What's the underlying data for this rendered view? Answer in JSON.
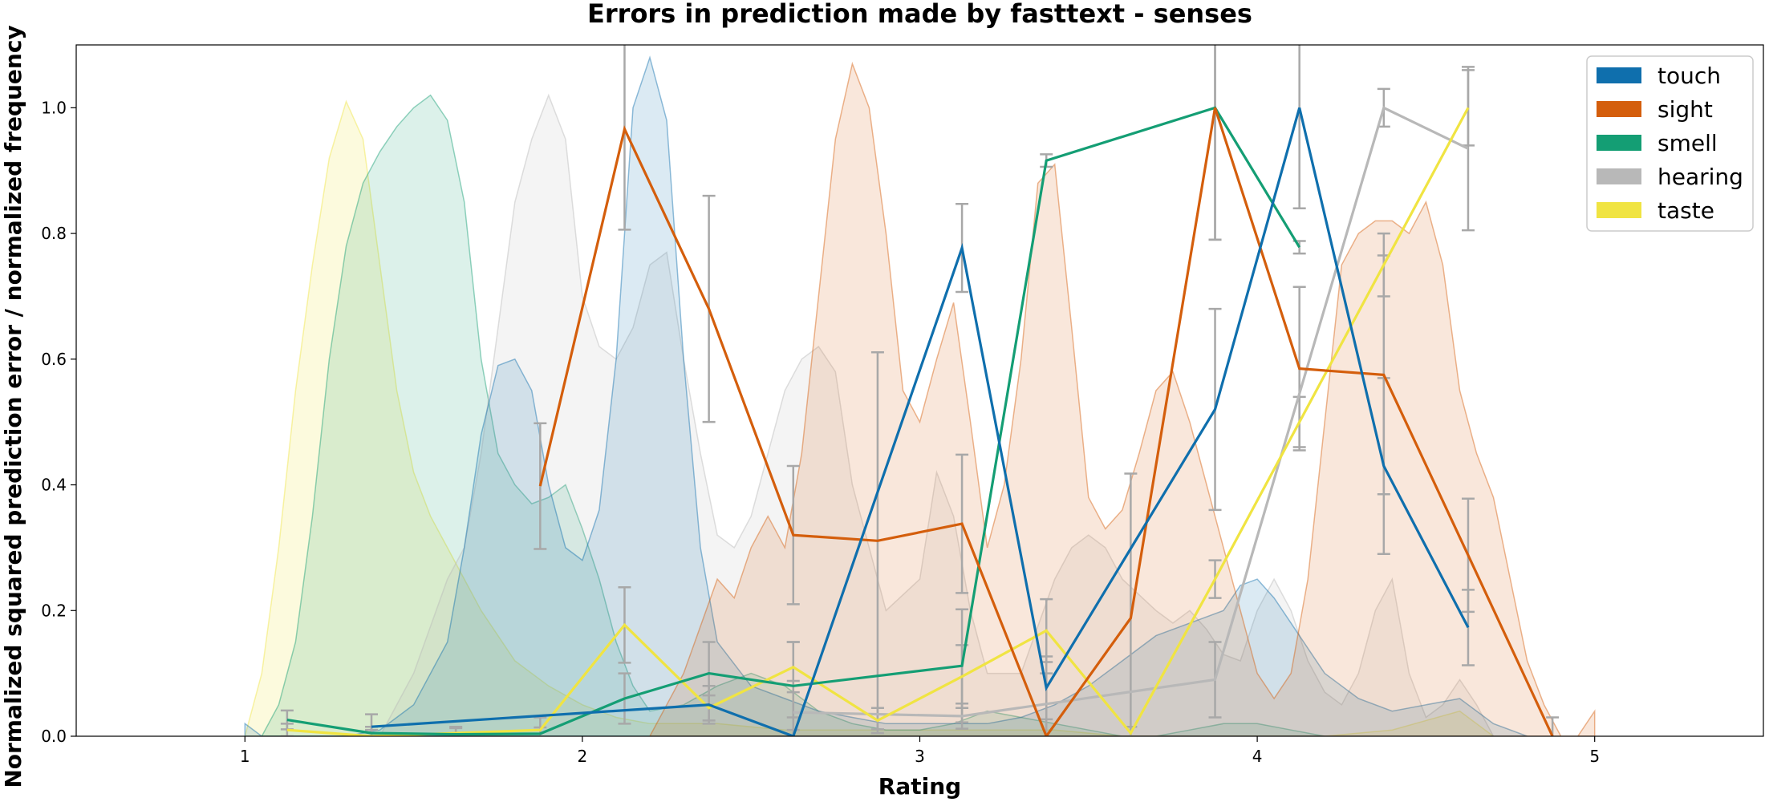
{
  "chart_data": {
    "type": "line",
    "title": "Errors in prediction made by fasttext - senses",
    "xlabel": "Rating",
    "ylabel": "Normalized squared prediction error / normalized frequency",
    "xlim": [
      0.5,
      5.5
    ],
    "ylim": [
      0,
      1.1
    ],
    "x_ticks": [
      1,
      2,
      3,
      4,
      5
    ],
    "y_ticks": [
      0.0,
      0.2,
      0.4,
      0.6,
      0.8,
      1.0
    ],
    "x_tick_labels": [
      "1",
      "2",
      "3",
      "4",
      "5"
    ],
    "y_tick_labels": [
      "0.0",
      "0.2",
      "0.4",
      "0.6",
      "0.8",
      "1.0"
    ],
    "grid": false,
    "legend_position": "top-right",
    "colors": {
      "touch": "#0f6fad",
      "sight": "#d45e0c",
      "smell": "#149e74",
      "hearing": "#b8b8b8",
      "taste": "#f0e442",
      "errorbar": "#a8a8a8"
    },
    "series": [
      {
        "name": "touch",
        "x": [
          1.375,
          2.375,
          2.625,
          3.125,
          3.375,
          3.875,
          4.125,
          4.375,
          4.625
        ],
        "y": [
          0.015,
          0.05,
          0.0,
          0.777,
          0.077,
          0.52,
          1.0,
          0.43,
          0.173
        ],
        "err": [
          0.02,
          0.03,
          0.03,
          0.07,
          0.05,
          0.16,
          0.16,
          0.14,
          0.06
        ],
        "density": {
          "x": [
            1.0,
            1.05,
            1.1,
            1.2,
            1.3,
            1.4,
            1.5,
            1.6,
            1.65,
            1.7,
            1.75,
            1.8,
            1.85,
            1.9,
            1.95,
            2.0,
            2.05,
            2.1,
            2.15,
            2.2,
            2.25,
            2.3,
            2.35,
            2.4,
            2.5,
            2.6,
            2.7,
            2.8,
            2.9,
            3.0,
            3.1,
            3.2,
            3.3,
            3.4,
            3.5,
            3.6,
            3.7,
            3.8,
            3.9,
            3.95,
            4.0,
            4.05,
            4.1,
            4.15,
            4.2,
            4.3,
            4.4,
            4.5,
            4.6,
            4.7,
            4.8
          ],
          "y": [
            0.02,
            0.0,
            0.0,
            0.0,
            0.0,
            0.01,
            0.05,
            0.15,
            0.3,
            0.48,
            0.59,
            0.6,
            0.55,
            0.4,
            0.3,
            0.28,
            0.36,
            0.6,
            1.0,
            1.08,
            0.98,
            0.6,
            0.3,
            0.15,
            0.08,
            0.06,
            0.04,
            0.03,
            0.02,
            0.02,
            0.02,
            0.02,
            0.03,
            0.05,
            0.08,
            0.12,
            0.16,
            0.18,
            0.2,
            0.24,
            0.25,
            0.22,
            0.18,
            0.14,
            0.1,
            0.06,
            0.04,
            0.05,
            0.06,
            0.02,
            0.0
          ]
        }
      },
      {
        "name": "sight",
        "x": [
          1.875,
          2.125,
          2.375,
          2.625,
          2.875,
          3.125,
          3.375,
          3.625,
          3.875,
          4.125,
          4.375,
          4.625,
          4.875
        ],
        "y": [
          0.398,
          0.966,
          0.68,
          0.32,
          0.311,
          0.338,
          0.0,
          0.188,
          1.0,
          0.585,
          0.575,
          0.288,
          0.0
        ],
        "err": [
          0.1,
          0.16,
          0.18,
          0.11,
          0.3,
          0.11,
          0.1,
          0.23,
          0.21,
          0.13,
          0.19,
          0.09,
          0.03
        ],
        "density": {
          "x": [
            2.2,
            2.3,
            2.4,
            2.45,
            2.5,
            2.55,
            2.6,
            2.65,
            2.7,
            2.75,
            2.8,
            2.85,
            2.9,
            2.95,
            3.0,
            3.05,
            3.1,
            3.15,
            3.2,
            3.25,
            3.3,
            3.35,
            3.4,
            3.45,
            3.5,
            3.55,
            3.6,
            3.65,
            3.7,
            3.75,
            3.8,
            3.85,
            3.9,
            3.95,
            4.0,
            4.05,
            4.1,
            4.15,
            4.2,
            4.25,
            4.3,
            4.35,
            4.4,
            4.45,
            4.5,
            4.55,
            4.6,
            4.65,
            4.7,
            4.75,
            4.8,
            4.85,
            4.9,
            4.95,
            5.0
          ],
          "y": [
            0.0,
            0.1,
            0.25,
            0.22,
            0.3,
            0.35,
            0.3,
            0.45,
            0.7,
            0.95,
            1.07,
            1.0,
            0.8,
            0.55,
            0.5,
            0.6,
            0.69,
            0.5,
            0.3,
            0.4,
            0.6,
            0.88,
            0.91,
            0.65,
            0.38,
            0.33,
            0.36,
            0.45,
            0.55,
            0.58,
            0.5,
            0.4,
            0.3,
            0.2,
            0.1,
            0.06,
            0.1,
            0.25,
            0.5,
            0.75,
            0.8,
            0.82,
            0.82,
            0.8,
            0.85,
            0.75,
            0.55,
            0.45,
            0.38,
            0.25,
            0.12,
            0.05,
            0.0,
            0.0,
            0.04
          ]
        }
      },
      {
        "name": "smell",
        "x": [
          1.125,
          1.375,
          1.625,
          1.875,
          2.125,
          2.375,
          2.625,
          3.125,
          3.375,
          3.875,
          4.125
        ],
        "y": [
          0.026,
          0.005,
          0.003,
          0.004,
          0.06,
          0.1,
          0.08,
          0.112,
          0.916,
          1.0,
          0.778
        ],
        "err": [
          0.015,
          0.01,
          0.01,
          0.01,
          0.04,
          0.05,
          0.07,
          0.09,
          0.01,
          0.21,
          0.01
        ],
        "density": {
          "x": [
            1.05,
            1.1,
            1.15,
            1.2,
            1.25,
            1.3,
            1.35,
            1.4,
            1.45,
            1.5,
            1.55,
            1.6,
            1.65,
            1.7,
            1.75,
            1.8,
            1.85,
            1.9,
            1.95,
            2.0,
            2.05,
            2.1,
            2.15,
            2.2,
            2.3,
            2.4,
            2.5,
            2.6,
            2.7,
            2.8,
            2.9,
            3.0,
            3.1,
            3.2,
            3.3,
            3.4,
            3.5,
            3.6,
            3.7,
            3.8,
            3.9,
            4.0,
            4.1,
            4.2
          ],
          "y": [
            0.0,
            0.05,
            0.15,
            0.35,
            0.6,
            0.78,
            0.88,
            0.93,
            0.97,
            1.0,
            1.02,
            0.98,
            0.85,
            0.6,
            0.45,
            0.4,
            0.37,
            0.38,
            0.4,
            0.33,
            0.25,
            0.15,
            0.08,
            0.04,
            0.05,
            0.08,
            0.1,
            0.08,
            0.04,
            0.02,
            0.01,
            0.01,
            0.02,
            0.04,
            0.03,
            0.02,
            0.01,
            0.0,
            0.0,
            0.01,
            0.02,
            0.02,
            0.01,
            0.0
          ]
        }
      },
      {
        "name": "hearing",
        "x": [
          2.625,
          3.125,
          3.875,
          4.375,
          4.625
        ],
        "y": [
          0.038,
          0.032,
          0.09,
          1.0,
          0.935
        ],
        "err": [
          0.05,
          0.02,
          0.06,
          0.03,
          0.13
        ],
        "density": {
          "x": [
            1.4,
            1.5,
            1.6,
            1.65,
            1.7,
            1.75,
            1.8,
            1.85,
            1.9,
            1.95,
            2.0,
            2.05,
            2.1,
            2.15,
            2.2,
            2.25,
            2.3,
            2.35,
            2.4,
            2.45,
            2.5,
            2.55,
            2.6,
            2.65,
            2.7,
            2.75,
            2.8,
            2.9,
            3.0,
            3.05,
            3.1,
            3.15,
            3.2,
            3.3,
            3.4,
            3.45,
            3.5,
            3.55,
            3.6,
            3.7,
            3.75,
            3.8,
            3.85,
            3.9,
            3.95,
            4.0,
            4.05,
            4.1,
            4.15,
            4.2,
            4.25,
            4.3,
            4.35,
            4.4,
            4.45,
            4.5,
            4.55,
            4.6,
            4.65,
            4.7
          ],
          "y": [
            0.0,
            0.1,
            0.25,
            0.3,
            0.45,
            0.65,
            0.85,
            0.95,
            1.02,
            0.95,
            0.7,
            0.62,
            0.6,
            0.65,
            0.75,
            0.77,
            0.6,
            0.45,
            0.32,
            0.3,
            0.35,
            0.45,
            0.55,
            0.6,
            0.62,
            0.58,
            0.4,
            0.2,
            0.25,
            0.42,
            0.35,
            0.2,
            0.1,
            0.1,
            0.25,
            0.3,
            0.32,
            0.3,
            0.25,
            0.2,
            0.18,
            0.2,
            0.17,
            0.13,
            0.12,
            0.2,
            0.25,
            0.2,
            0.12,
            0.07,
            0.05,
            0.1,
            0.2,
            0.25,
            0.1,
            0.03,
            0.05,
            0.09,
            0.05,
            0.0
          ]
        }
      },
      {
        "name": "taste",
        "x": [
          1.125,
          1.375,
          1.625,
          1.875,
          2.125,
          2.375,
          2.625,
          2.875,
          3.125,
          3.375,
          3.625,
          3.875,
          4.125,
          4.375,
          4.625
        ],
        "y": [
          0.01,
          0.0,
          0.005,
          0.01,
          0.177,
          0.045,
          0.11,
          0.025,
          0.095,
          0.168,
          0.005,
          0.25,
          0.5,
          0.75,
          1.0
        ],
        "err": [
          0.01,
          0.01,
          0.01,
          0.02,
          0.06,
          0.02,
          0.04,
          0.02,
          0.05,
          0.05,
          0.01,
          0.03,
          0.04,
          0.05,
          0.06
        ],
        "density": {
          "x": [
            1.0,
            1.05,
            1.1,
            1.15,
            1.2,
            1.25,
            1.3,
            1.35,
            1.4,
            1.45,
            1.5,
            1.55,
            1.6,
            1.65,
            1.7,
            1.8,
            1.9,
            2.0,
            2.1,
            2.2,
            2.4,
            2.6,
            2.8,
            3.0,
            3.2,
            3.4,
            3.6,
            3.8,
            4.0,
            4.2,
            4.4,
            4.6,
            4.7
          ],
          "y": [
            0.0,
            0.1,
            0.3,
            0.55,
            0.75,
            0.92,
            1.01,
            0.95,
            0.75,
            0.55,
            0.42,
            0.35,
            0.3,
            0.25,
            0.2,
            0.12,
            0.08,
            0.05,
            0.03,
            0.02,
            0.02,
            0.01,
            0.01,
            0.01,
            0.01,
            0.01,
            0.0,
            0.0,
            0.0,
            0.0,
            0.01,
            0.04,
            0.0
          ]
        }
      }
    ]
  }
}
